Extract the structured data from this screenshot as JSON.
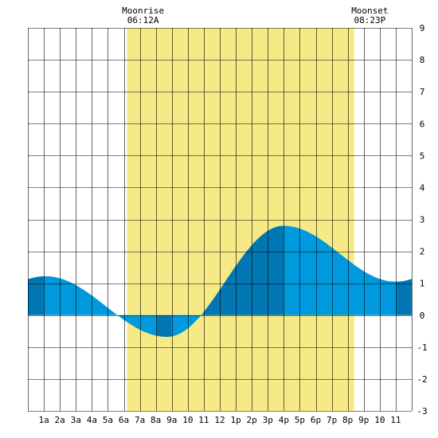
{
  "chart_data": {
    "type": "area",
    "title": "",
    "xlabel": "",
    "ylabel": "",
    "x_unit": "hour",
    "xlim": [
      -1,
      23
    ],
    "ylim": [
      -3,
      9
    ],
    "y_ticks": [
      -3,
      -2,
      -1,
      0,
      1,
      2,
      3,
      4,
      5,
      6,
      7,
      8,
      9
    ],
    "x_tick_hours": [
      0,
      1,
      2,
      3,
      4,
      5,
      6,
      7,
      8,
      9,
      10,
      11,
      12,
      13,
      14,
      15,
      16,
      17,
      18,
      19,
      20,
      21,
      22
    ],
    "x_tick_labels": [
      "1a",
      "2a",
      "3a",
      "4a",
      "5a",
      "6a",
      "7a",
      "8a",
      "9a",
      "10",
      "11",
      "12",
      "1p",
      "2p",
      "3p",
      "4p",
      "5p",
      "6p",
      "7p",
      "8p",
      "9p",
      "10",
      "11"
    ],
    "grid": true,
    "moon_window": {
      "start_hour": 5.2,
      "end_hour": 19.4
    },
    "annotations": [
      {
        "key": "moonrise",
        "label": "Moonrise",
        "time": "06:12A",
        "hour": 6.2
      },
      {
        "key": "moonset",
        "label": "Moonset",
        "time": "08:23P",
        "hour": 20.38
      }
    ],
    "tide_extremes": [
      {
        "hour": 0.1,
        "value": 1.22,
        "kind": "high"
      },
      {
        "hour": 7.7,
        "value": -0.68,
        "kind": "low"
      },
      {
        "hour": 15.0,
        "value": 2.8,
        "kind": "high"
      },
      {
        "hour": 22.0,
        "value": 1.05,
        "kind": "low"
      }
    ],
    "series": [
      {
        "x": [
          -1,
          0,
          1,
          2,
          3,
          4,
          5,
          6,
          7,
          8,
          9,
          10,
          11,
          12,
          13,
          14,
          15,
          16,
          17,
          18,
          19,
          20,
          21,
          22,
          23
        ],
        "values": [
          1.12,
          1.22,
          1.12,
          0.88,
          0.52,
          0.15,
          -0.22,
          -0.5,
          -0.68,
          -0.65,
          -0.3,
          0.3,
          0.95,
          1.6,
          2.18,
          2.62,
          2.8,
          2.68,
          2.3,
          1.85,
          1.45,
          1.2,
          1.07,
          1.05,
          1.07
        ]
      }
    ],
    "colors": {
      "daylight": "#f5ea86",
      "tide": "#0099dd",
      "tide_dark": "#0077b3",
      "grid": "#000000",
      "background": "#ffffff"
    }
  }
}
